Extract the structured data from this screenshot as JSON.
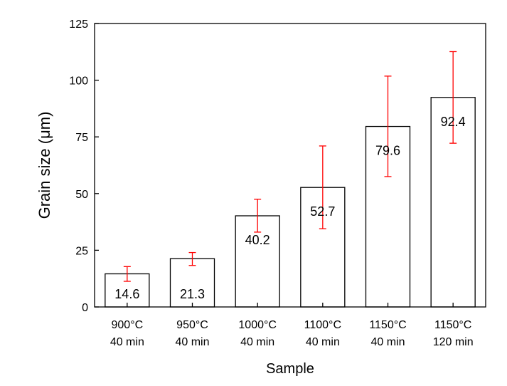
{
  "chart_data": {
    "type": "bar",
    "title": "",
    "xlabel": "Sample",
    "ylabel": "Grain size (μm)",
    "ylim": [
      0,
      125
    ],
    "yticks": [
      "0",
      "25",
      "50",
      "75",
      "100",
      "125"
    ],
    "categories": [
      [
        "900°C",
        "40 min"
      ],
      [
        "950°C",
        "40 min"
      ],
      [
        "1000°C",
        "40 min"
      ],
      [
        "1100°C",
        "40 min"
      ],
      [
        "1150°C",
        "40 min"
      ],
      [
        "1150°C",
        "120 min"
      ]
    ],
    "values": [
      14.6,
      21.3,
      40.2,
      52.7,
      79.6,
      92.4
    ],
    "value_labels": [
      "14.6",
      "21.3",
      "40.2",
      "52.7",
      "79.6",
      "92.4"
    ],
    "errors": [
      [
        11.3,
        17.8
      ],
      [
        18.3,
        24.0
      ],
      [
        33.0,
        47.5
      ],
      [
        34.5,
        71.0
      ],
      [
        57.5,
        101.8
      ],
      [
        72.2,
        112.6
      ]
    ],
    "grid": false,
    "legend": "none",
    "colors": {
      "bar_fill": "#ffffff",
      "bar_stroke": "#000000",
      "error_bar": "#ff0000",
      "axis": "#000000"
    }
  }
}
